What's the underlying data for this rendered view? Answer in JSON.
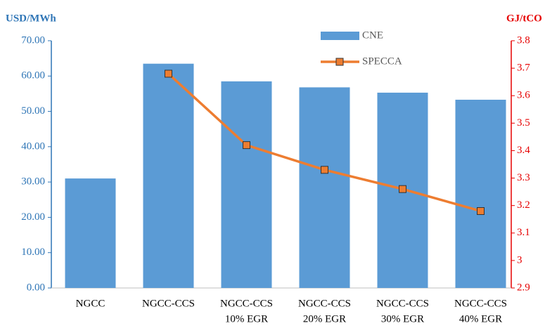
{
  "chart_data": {
    "type": "bar-line",
    "y_label": "USD/MWh",
    "y2_label": "GJ/tCO",
    "categories": [
      [
        "NGCC"
      ],
      [
        "NGCC-CCS"
      ],
      [
        "NGCC-CCS",
        "10% EGR"
      ],
      [
        "NGCC-CCS",
        "20% EGR"
      ],
      [
        "NGCC-CCS",
        "30% EGR"
      ],
      [
        "NGCC-CCS",
        "40% EGR"
      ]
    ],
    "series": [
      {
        "name": "CNE",
        "type": "bar",
        "color": "#5b9bd5",
        "values": [
          31.0,
          63.5,
          58.5,
          56.8,
          55.3,
          53.3
        ]
      },
      {
        "name": "SPECCA",
        "type": "line",
        "axis": "y2",
        "color": "#ed7d31",
        "values": [
          null,
          3.68,
          3.42,
          3.33,
          3.26,
          3.18
        ]
      }
    ],
    "ylim": [
      0,
      70
    ],
    "yticks": [
      {
        "value": 0,
        "label": "0.00"
      },
      {
        "value": 10,
        "label": "10.00"
      },
      {
        "value": 20,
        "label": "20.00"
      },
      {
        "value": 30,
        "label": "30.00"
      },
      {
        "value": 40,
        "label": "40.00"
      },
      {
        "value": 50,
        "label": "50.00"
      },
      {
        "value": 60,
        "label": "60.00"
      },
      {
        "value": 70,
        "label": "70.00"
      }
    ],
    "y2lim": [
      2.9,
      3.8
    ],
    "y2ticks": [
      2.9,
      3,
      3.1,
      3.2,
      3.3,
      3.4,
      3.5,
      3.6,
      3.7,
      3.8
    ],
    "y_color": "#2e75b6",
    "y2_color": "#e60000"
  }
}
